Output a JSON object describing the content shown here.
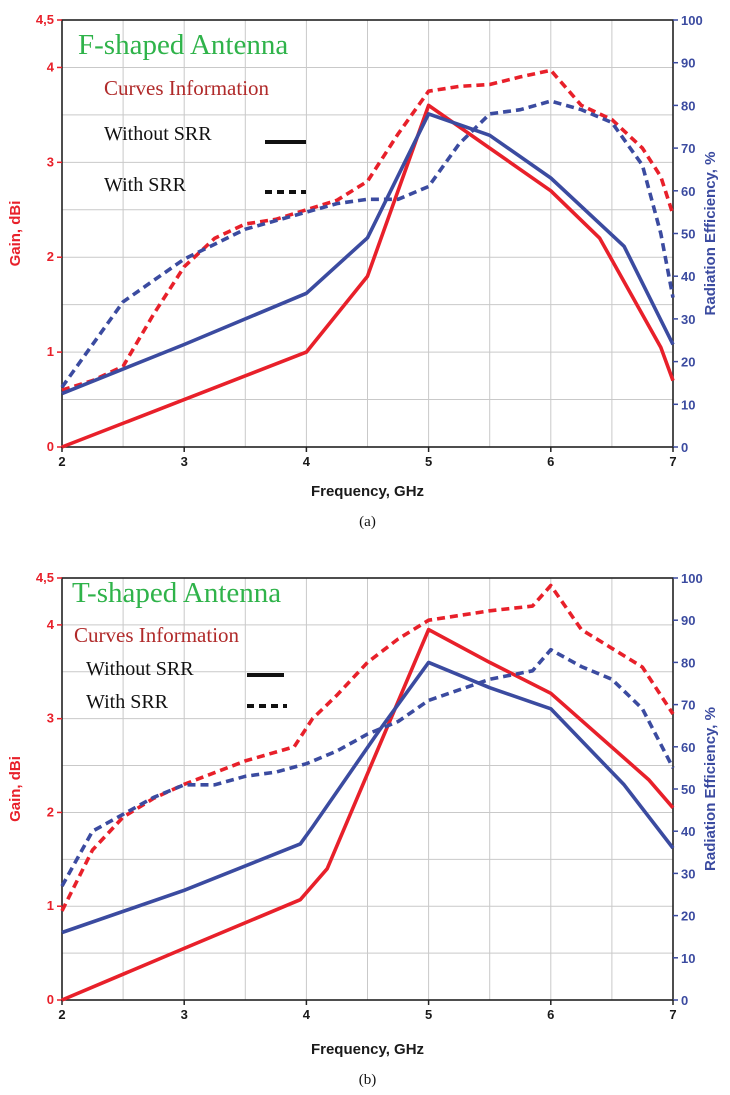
{
  "chart_data": [
    {
      "type": "line",
      "title": "F-shaped Antenna",
      "caption": "(a)",
      "xlabel": "Frequency, GHz",
      "ylabel_left": "Gain, dBi",
      "ylabel_right": "Radiation Efficiency, %",
      "xlim": [
        2,
        7
      ],
      "ylim_left": [
        0,
        4.5
      ],
      "ylim_right": [
        0,
        100
      ],
      "x_ticks": [
        "2",
        "3",
        "4",
        "5",
        "6",
        "7"
      ],
      "y_left_ticks": [
        "0",
        "1",
        "2",
        "3",
        "4",
        "4,5"
      ],
      "y_right_ticks": [
        "0",
        "10",
        "20",
        "30",
        "40",
        "50",
        "60",
        "70",
        "80",
        "90",
        "100"
      ],
      "legend": {
        "heading": "Curves Information",
        "items": [
          "Without SRR",
          "With SRR"
        ]
      },
      "grid": true,
      "colors": {
        "gain": "#e8202a",
        "efficiency": "#3b4ba0"
      },
      "series": [
        {
          "label": "Gain, without SRR",
          "axis": "left",
          "style": "solid",
          "x": [
            2,
            4,
            4.5,
            5,
            5.5,
            6,
            6.4,
            6.9,
            7
          ],
          "y": [
            0,
            1.0,
            1.8,
            3.6,
            3.15,
            2.7,
            2.2,
            1.05,
            0.7
          ]
        },
        {
          "label": "Gain, with SRR",
          "axis": "left",
          "style": "dashed",
          "x": [
            2,
            2.25,
            2.5,
            2.75,
            3,
            3.25,
            3.5,
            3.75,
            4,
            4.25,
            4.5,
            4.75,
            5,
            5.25,
            5.5,
            5.75,
            6,
            6.25,
            6.5,
            6.75,
            6.9,
            7
          ],
          "y": [
            0.6,
            0.7,
            0.85,
            1.4,
            1.9,
            2.2,
            2.35,
            2.4,
            2.5,
            2.6,
            2.8,
            3.3,
            3.75,
            3.8,
            3.82,
            3.9,
            3.97,
            3.6,
            3.45,
            3.15,
            2.85,
            2.45
          ]
        },
        {
          "label": "Radiation efficiency, without SRR",
          "axis": "right",
          "style": "solid",
          "x": [
            2,
            3,
            4,
            4.5,
            5,
            5.5,
            6,
            6.6,
            7
          ],
          "y": [
            12.5,
            24,
            36,
            49,
            78,
            73,
            63,
            47,
            24
          ]
        },
        {
          "label": "Radiation efficiency, with SRR",
          "axis": "right",
          "style": "dashed",
          "x": [
            2,
            2.5,
            3,
            3.5,
            4,
            4.25,
            4.5,
            4.75,
            5,
            5.25,
            5.5,
            5.75,
            6,
            6.25,
            6.5,
            6.75,
            6.9,
            7
          ],
          "y": [
            14,
            34,
            44,
            51,
            55,
            57,
            58,
            58,
            61,
            71,
            78,
            79,
            81,
            79,
            76,
            66,
            50,
            35
          ]
        }
      ]
    },
    {
      "type": "line",
      "title": "T-shaped Antenna",
      "caption": "(b)",
      "xlabel": "Frequency, GHz",
      "ylabel_left": "Gain, dBi",
      "ylabel_right": "Radiation Efficiency, %",
      "xlim": [
        2,
        7
      ],
      "ylim_left": [
        0,
        4.5
      ],
      "ylim_right": [
        0,
        100
      ],
      "x_ticks": [
        "2",
        "3",
        "4",
        "5",
        "6",
        "7"
      ],
      "y_left_ticks": [
        "0",
        "1",
        "2",
        "3",
        "4",
        "4,5"
      ],
      "y_right_ticks": [
        "0",
        "10",
        "20",
        "30",
        "40",
        "50",
        "60",
        "70",
        "80",
        "90",
        "100"
      ],
      "legend": {
        "heading": "Curves Information",
        "items": [
          "Without SRR",
          "With SRR"
        ]
      },
      "grid": true,
      "colors": {
        "gain": "#e8202a",
        "efficiency": "#3b4ba0"
      },
      "series": [
        {
          "label": "Gain, without SRR",
          "axis": "left",
          "style": "solid",
          "x": [
            2,
            3,
            3.95,
            4.17,
            5,
            5.5,
            6,
            6.8,
            7
          ],
          "y": [
            0,
            0.55,
            1.07,
            1.4,
            3.95,
            3.6,
            3.27,
            2.35,
            2.05
          ]
        },
        {
          "label": "Gain, with SRR",
          "axis": "left",
          "style": "dashed",
          "x": [
            2,
            2.25,
            2.5,
            2.75,
            3,
            3.5,
            3.9,
            4.05,
            4.25,
            4.5,
            4.75,
            5,
            5.5,
            5.85,
            6,
            6.25,
            6.5,
            6.75,
            7
          ],
          "y": [
            0.95,
            1.6,
            1.95,
            2.15,
            2.3,
            2.55,
            2.7,
            3.0,
            3.25,
            3.6,
            3.85,
            4.05,
            4.15,
            4.2,
            4.42,
            3.95,
            3.75,
            3.55,
            3.05
          ]
        },
        {
          "label": "Radiation efficiency, without SRR",
          "axis": "right",
          "style": "solid",
          "x": [
            2,
            3,
            3.95,
            4.05,
            4.6,
            5,
            5.5,
            6,
            6.6,
            7
          ],
          "y": [
            16,
            26,
            37,
            41,
            64,
            80,
            74,
            69,
            51,
            36
          ]
        },
        {
          "label": "Radiation efficiency, with SRR",
          "axis": "right",
          "style": "dashed",
          "x": [
            2,
            2.25,
            2.5,
            2.75,
            3,
            3.25,
            3.5,
            3.75,
            4,
            4.25,
            4.5,
            4.75,
            5,
            5.5,
            5.85,
            6,
            6.25,
            6.5,
            6.75,
            7
          ],
          "y": [
            27,
            40,
            44,
            48,
            51,
            51,
            53,
            54,
            56,
            59,
            63,
            66,
            71,
            76,
            78,
            83,
            79,
            76,
            69,
            55
          ]
        }
      ]
    }
  ]
}
